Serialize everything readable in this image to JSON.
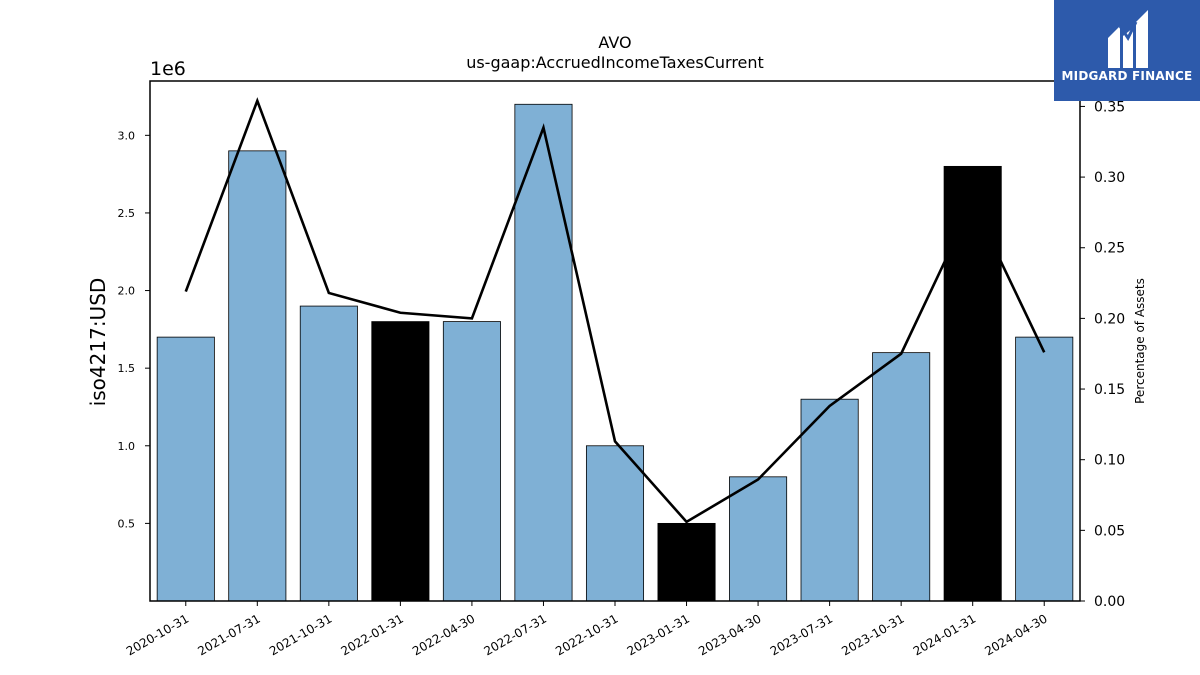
{
  "chart_data": {
    "type": "bar",
    "title": "AVO",
    "subtitle": "us-gaap:AccruedIncomeTaxesCurrent",
    "ylabel": "iso4217:USD",
    "ylabel_right": "Percentage of Assets",
    "y_offset_label": "1e6",
    "categories": [
      "2020-10-31",
      "2021-07-31",
      "2021-10-31",
      "2022-01-31",
      "2022-04-30",
      "2022-07-31",
      "2022-10-31",
      "2023-01-31",
      "2023-04-30",
      "2023-07-31",
      "2023-10-31",
      "2024-01-31",
      "2024-04-30"
    ],
    "series": [
      {
        "type": "bar",
        "axis": "left",
        "values": [
          1700000,
          2900000,
          1900000,
          1800000,
          1800000,
          3200000,
          1000000,
          500000,
          800000,
          1300000,
          1600000,
          2800000,
          1700000
        ],
        "highlight": [
          false,
          false,
          false,
          true,
          false,
          false,
          false,
          true,
          false,
          false,
          false,
          true,
          false
        ],
        "color": "#7fb0d5",
        "highlight_color": "#000000"
      },
      {
        "type": "line",
        "axis": "right",
        "values": [
          0.219,
          0.354,
          0.218,
          0.204,
          0.2,
          0.335,
          0.113,
          0.056,
          0.086,
          0.138,
          0.175,
          0.282,
          0.176
        ],
        "color": "#000000"
      }
    ],
    "ylim": [
      0,
      3350000
    ],
    "ylim_right": [
      0,
      0.368
    ],
    "yticks": [
      500000,
      1000000,
      1500000,
      2000000,
      2500000,
      3000000
    ],
    "ytick_labels": [
      "0.5",
      "1.0",
      "1.5",
      "2.0",
      "2.5",
      "3.0"
    ],
    "yticks_right": [
      0,
      0.05,
      0.1,
      0.15,
      0.2,
      0.25,
      0.3,
      0.35
    ],
    "ytick_labels_right": [
      "0.00",
      "0.05",
      "0.10",
      "0.15",
      "0.20",
      "0.25",
      "0.30",
      "0.35"
    ],
    "grid": false
  },
  "brand": {
    "name": "MIDGARD FINANCE",
    "logo_icon": "midgard-logo-icon",
    "color": "#2d5aab"
  }
}
